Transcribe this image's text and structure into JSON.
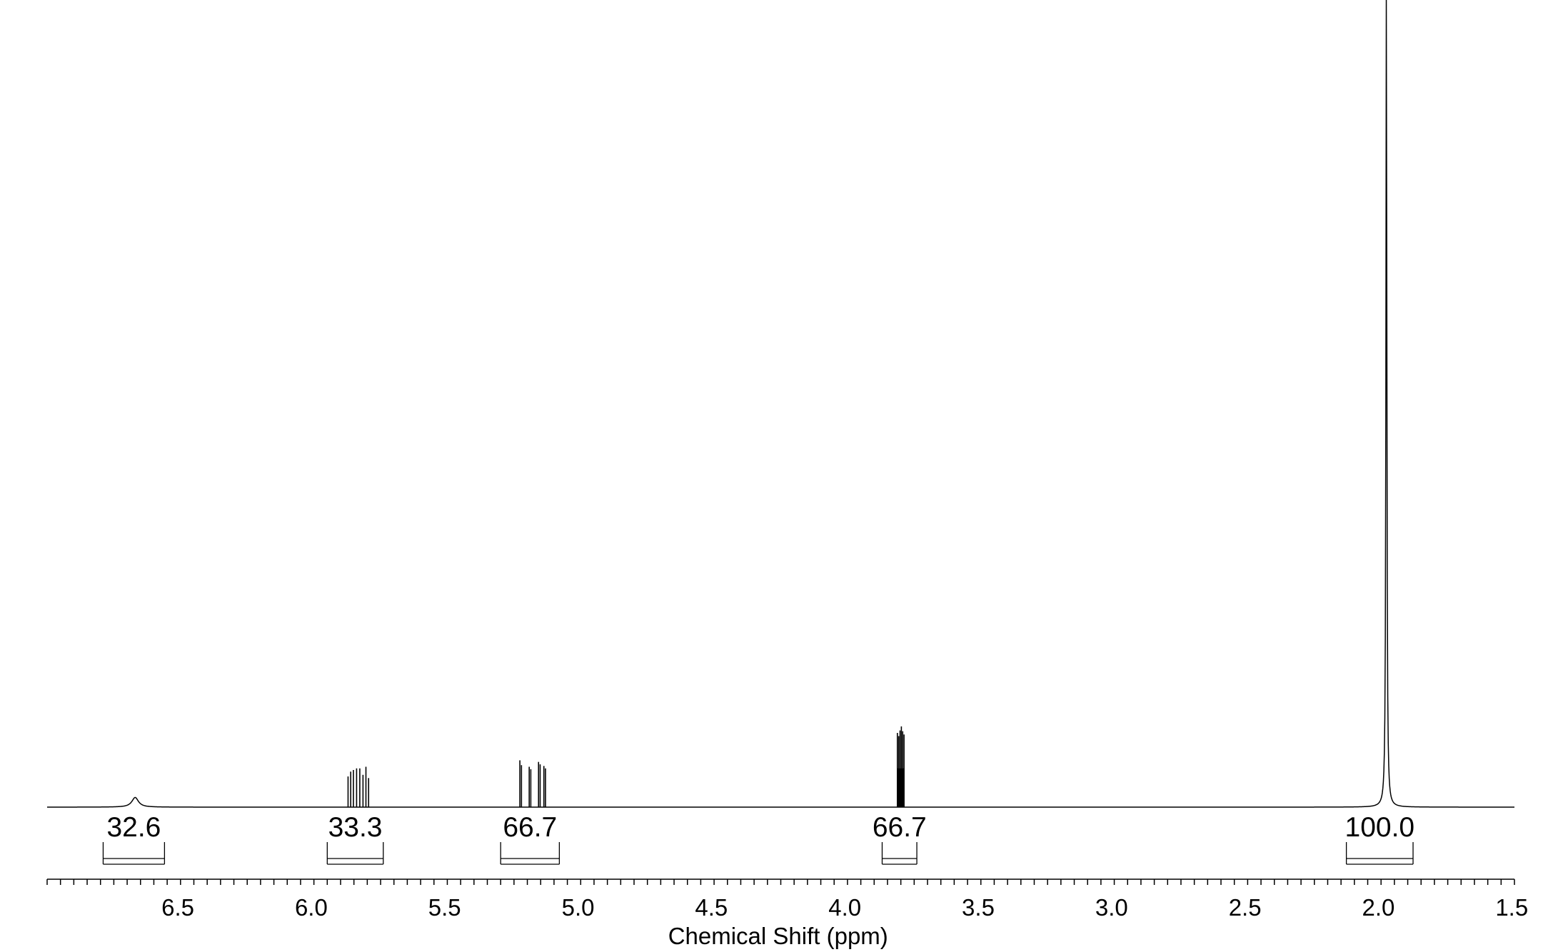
{
  "chart_data": {
    "type": "line",
    "title": "",
    "xlabel": "Chemical Shift (ppm)",
    "ylabel": "",
    "xlim": [
      6.99,
      1.49
    ],
    "x_reversed": true,
    "major_ticks": [
      6.5,
      6.0,
      5.5,
      5.0,
      4.5,
      4.0,
      3.5,
      3.0,
      2.5,
      2.0,
      1.5
    ],
    "tick_labels": [
      "6.5",
      "6.0",
      "5.5",
      "5.0",
      "4.5",
      "4.0",
      "3.5",
      "3.0",
      "2.5",
      "2.0",
      "1.5"
    ],
    "minor_tick_step": 0.05,
    "grid": false,
    "peaks": [
      {
        "shift": 6.66,
        "height": 0.012,
        "shape": "broad",
        "width": 0.03
      },
      {
        "shift": 5.862,
        "height": 0.038
      },
      {
        "shift": 5.852,
        "height": 0.044
      },
      {
        "shift": 5.842,
        "height": 0.046
      },
      {
        "shift": 5.83,
        "height": 0.048
      },
      {
        "shift": 5.818,
        "height": 0.048
      },
      {
        "shift": 5.806,
        "height": 0.04
      },
      {
        "shift": 5.795,
        "height": 0.05
      },
      {
        "shift": 5.785,
        "height": 0.036
      },
      {
        "shift": 5.218,
        "height": 0.058
      },
      {
        "shift": 5.212,
        "height": 0.052
      },
      {
        "shift": 5.183,
        "height": 0.05
      },
      {
        "shift": 5.177,
        "height": 0.047
      },
      {
        "shift": 5.148,
        "height": 0.056
      },
      {
        "shift": 5.142,
        "height": 0.053
      },
      {
        "shift": 5.128,
        "height": 0.051
      },
      {
        "shift": 5.122,
        "height": 0.048
      },
      {
        "shift": 3.803,
        "height": 0.092
      },
      {
        "shift": 3.798,
        "height": 0.088
      },
      {
        "shift": 3.793,
        "height": 0.095
      },
      {
        "shift": 3.788,
        "height": 0.1
      },
      {
        "shift": 3.783,
        "height": 0.094
      },
      {
        "shift": 3.778,
        "height": 0.09
      },
      {
        "shift": 1.97,
        "height": 1.05,
        "shape": "broad",
        "width": 0.004
      }
    ],
    "integrals": [
      {
        "label": "32.6",
        "from": 6.78,
        "to": 6.55
      },
      {
        "label": "33.3",
        "from": 5.94,
        "to": 5.73
      },
      {
        "label": "66.7",
        "from": 5.29,
        "to": 5.07
      },
      {
        "label": "66.7",
        "from": 3.86,
        "to": 3.73
      },
      {
        "label": "100.0",
        "from": 2.12,
        "to": 1.87
      }
    ]
  }
}
